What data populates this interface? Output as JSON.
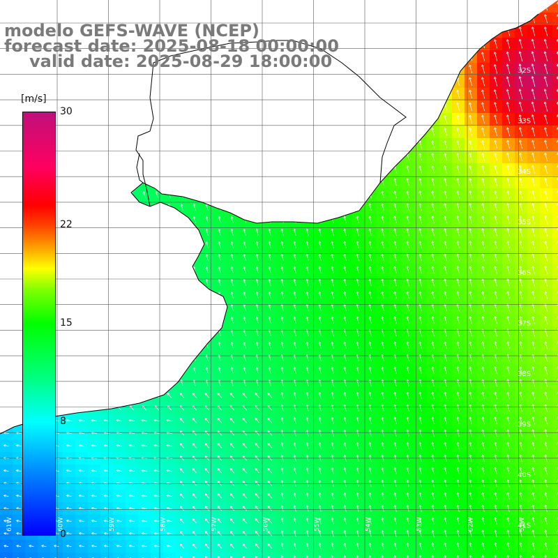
{
  "title": {
    "line1": "modelo GEFS-WAVE (NCEP)",
    "line2": "forecast date: 2025-08-18 00:00:00",
    "line3": "valid date: 2025-08-29 18:00:00"
  },
  "colorbar": {
    "unit": "[m/s]",
    "min": 0,
    "max": 30,
    "ticks": [
      {
        "label": "30",
        "value": 30
      },
      {
        "label": "22",
        "value": 22
      },
      {
        "label": "15",
        "value": 15
      },
      {
        "label": "8",
        "value": 8
      },
      {
        "label": "0",
        "value": 0
      }
    ],
    "colors": [
      "#0000ff",
      "#0080ff",
      "#00ffff",
      "#00ff80",
      "#00ff00",
      "#80ff00",
      "#ffff00",
      "#ffa000",
      "#ff0000",
      "#c0107a"
    ]
  },
  "map": {
    "lat_labels": [
      "32S",
      "33S",
      "34S",
      "35S",
      "36S",
      "37S",
      "38S",
      "39S",
      "40S",
      "41S"
    ],
    "lon_labels": [
      "61W",
      "60W",
      "59W",
      "58W",
      "57W",
      "56W",
      "55W",
      "54W",
      "53W",
      "52W",
      "51W"
    ],
    "ocean_color": "#00ff60",
    "land_color": "#ffffff",
    "arrow_color": "#ffffff"
  }
}
